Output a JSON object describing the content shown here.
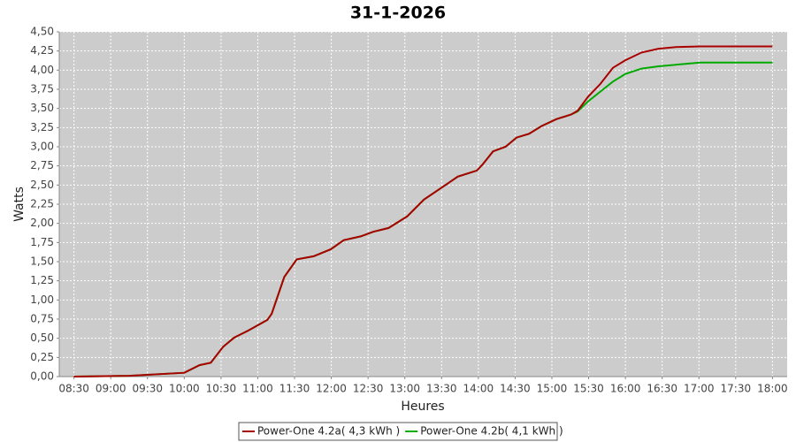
{
  "chart_data": {
    "type": "line",
    "title": "31-1-2026",
    "x_label": "Heures",
    "y_label": "Watts",
    "x": [
      8.5,
      9.25,
      10.0,
      10.21,
      10.36,
      10.53,
      10.68,
      10.87,
      11.13,
      11.19,
      11.36,
      11.53,
      11.76,
      11.99,
      12.17,
      12.4,
      12.57,
      12.78,
      13.03,
      13.26,
      13.49,
      13.72,
      13.98,
      14.06,
      14.2,
      14.37,
      14.52,
      14.69,
      14.86,
      15.06,
      15.26,
      15.35,
      15.49,
      15.66,
      15.83,
      16.0,
      16.22,
      16.45,
      16.68,
      17.02,
      17.5,
      18.0
    ],
    "series": [
      {
        "name": "Power-One 4.2a( 4,3 kWh )",
        "color": "#aa0000",
        "values": [
          0,
          0.01,
          0.05,
          0.15,
          0.18,
          0.39,
          0.51,
          0.6,
          0.74,
          0.82,
          1.3,
          1.53,
          1.57,
          1.66,
          1.78,
          1.83,
          1.89,
          1.94,
          2.09,
          2.31,
          2.46,
          2.61,
          2.69,
          2.77,
          2.94,
          3.0,
          3.12,
          3.17,
          3.27,
          3.36,
          3.42,
          3.47,
          3.65,
          3.82,
          4.03,
          4.13,
          4.23,
          4.28,
          4.3,
          4.31,
          4.31,
          4.31
        ]
      },
      {
        "name": "Power-One 4.2b( 4,1 kWh )",
        "color": "#00aa00",
        "values": [
          0,
          0.01,
          0.05,
          0.15,
          0.18,
          0.39,
          0.51,
          0.6,
          0.74,
          0.82,
          1.3,
          1.53,
          1.57,
          1.66,
          1.78,
          1.83,
          1.89,
          1.94,
          2.09,
          2.31,
          2.46,
          2.61,
          2.69,
          2.77,
          2.94,
          3.0,
          3.12,
          3.17,
          3.27,
          3.36,
          3.42,
          3.46,
          3.59,
          3.72,
          3.85,
          3.95,
          4.02,
          4.05,
          4.07,
          4.1,
          4.1,
          4.1
        ]
      }
    ],
    "xlim": [
      8.3,
      18.2
    ],
    "ylim": [
      0,
      4.5
    ],
    "grid": true,
    "xticks": [
      {
        "value": 8.5,
        "label": "08:30"
      },
      {
        "value": 9,
        "label": "09:00"
      },
      {
        "value": 9.5,
        "label": "09:30"
      },
      {
        "value": 10,
        "label": "10:00"
      },
      {
        "value": 10.5,
        "label": "10:30"
      },
      {
        "value": 11,
        "label": "11:00"
      },
      {
        "value": 11.5,
        "label": "11:30"
      },
      {
        "value": 12,
        "label": "12:00"
      },
      {
        "value": 12.5,
        "label": "12:30"
      },
      {
        "value": 13,
        "label": "13:00"
      },
      {
        "value": 13.5,
        "label": "13:30"
      },
      {
        "value": 14,
        "label": "14:00"
      },
      {
        "value": 14.5,
        "label": "14:30"
      },
      {
        "value": 15,
        "label": "15:00"
      },
      {
        "value": 15.5,
        "label": "15:30"
      },
      {
        "value": 16,
        "label": "16:00"
      },
      {
        "value": 16.5,
        "label": "16:30"
      },
      {
        "value": 17,
        "label": "17:00"
      },
      {
        "value": 17.5,
        "label": "17:30"
      },
      {
        "value": 18,
        "label": "18:00"
      }
    ],
    "yticks": [
      {
        "value": 0,
        "label": "0,00"
      },
      {
        "value": 0.25,
        "label": "0,25"
      },
      {
        "value": 0.5,
        "label": "0,50"
      },
      {
        "value": 0.75,
        "label": "0,75"
      },
      {
        "value": 1,
        "label": "1,00"
      },
      {
        "value": 1.25,
        "label": "1,25"
      },
      {
        "value": 1.5,
        "label": "1,50"
      },
      {
        "value": 1.75,
        "label": "1,75"
      },
      {
        "value": 2,
        "label": "2,00"
      },
      {
        "value": 2.25,
        "label": "2,25"
      },
      {
        "value": 2.5,
        "label": "2,50"
      },
      {
        "value": 2.75,
        "label": "2,75"
      },
      {
        "value": 3,
        "label": "3,00"
      },
      {
        "value": 3.25,
        "label": "3,25"
      },
      {
        "value": 3.5,
        "label": "3,50"
      },
      {
        "value": 3.75,
        "label": "3,75"
      },
      {
        "value": 4,
        "label": "4,00"
      },
      {
        "value": 4.25,
        "label": "4,25"
      },
      {
        "value": 4.5,
        "label": "4,50"
      }
    ]
  }
}
